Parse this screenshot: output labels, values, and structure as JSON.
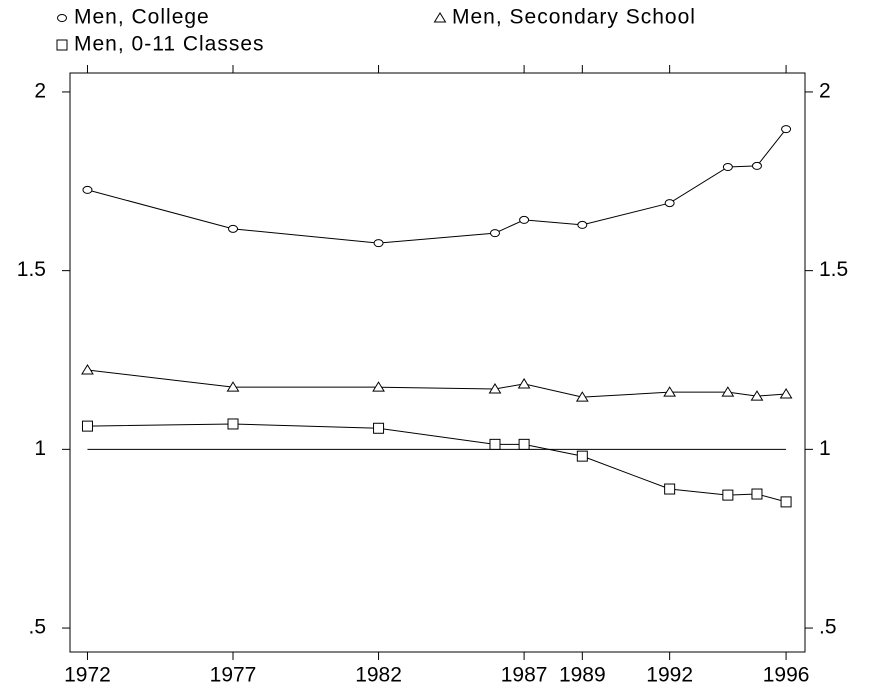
{
  "chart_data": {
    "type": "line",
    "x": [
      1972,
      1977,
      1982,
      1986,
      1987,
      1989,
      1992,
      1994,
      1995,
      1996
    ],
    "series": [
      {
        "name": "Men, College",
        "color": "#000000",
        "marker": "circle",
        "values": [
          1.726,
          1.617,
          1.577,
          1.605,
          1.642,
          1.628,
          1.689,
          1.79,
          1.793,
          1.896
        ]
      },
      {
        "name": "Men, Secondary School",
        "color": "#000000",
        "marker": "triangle",
        "values": [
          1.222,
          1.174,
          1.174,
          1.169,
          1.183,
          1.146,
          1.16,
          1.16,
          1.149,
          1.155
        ]
      },
      {
        "name": "Men, 0-11 Classes",
        "color": "#000000",
        "marker": "square",
        "values": [
          1.065,
          1.071,
          1.059,
          1.014,
          1.014,
          0.981,
          0.889,
          0.872,
          0.875,
          0.853
        ]
      }
    ],
    "hline": 1,
    "xlim": [
      1971.4,
      1996.65
    ],
    "xticks": [
      1972,
      1977,
      1982,
      1987,
      1989,
      1992,
      1996
    ],
    "ylim": [
      0.433,
      2.053
    ],
    "yticks": [
      2,
      1.5,
      1,
      {
        "value": 0.5,
        "label": ".5"
      }
    ]
  }
}
